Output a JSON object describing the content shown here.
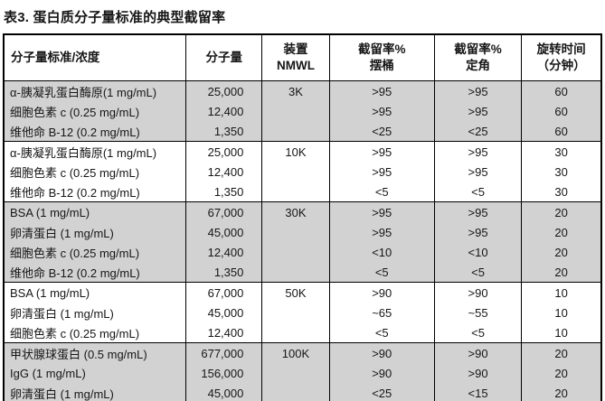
{
  "title": "表3. 蛋白质分子量标准的典型截留率",
  "colors": {
    "band": "#d2d2d2",
    "border": "#000000",
    "text": "#161616"
  },
  "table": {
    "headers": [
      {
        "line1": "分子量标准/浓度",
        "line2": ""
      },
      {
        "line1": "分子量",
        "line2": ""
      },
      {
        "line1": "装置",
        "line2": "NMWL"
      },
      {
        "line1": "截留率%",
        "line2": "摆桶"
      },
      {
        "line1": "截留率%",
        "line2": "定角"
      },
      {
        "line1": "旋转时间",
        "line2": "（分钟）"
      }
    ],
    "groups": [
      {
        "nmwl": "3K",
        "rows": [
          {
            "standard": "α-胰凝乳蛋白酶原(1 mg/mL)",
            "mw": "25,000",
            "swing": ">95",
            "fixed": ">95",
            "time": "60"
          },
          {
            "standard": "细胞色素 c (0.25 mg/mL)",
            "mw": "12,400",
            "swing": ">95",
            "fixed": ">95",
            "time": "60"
          },
          {
            "standard": "维他命 B-12 (0.2 mg/mL)",
            "mw": "1,350",
            "swing": "<25",
            "fixed": "<25",
            "time": "60"
          }
        ]
      },
      {
        "nmwl": "10K",
        "rows": [
          {
            "standard": "α-胰凝乳蛋白酶原(1 mg/mL)",
            "mw": "25,000",
            "swing": ">95",
            "fixed": ">95",
            "time": "30"
          },
          {
            "standard": "细胞色素 c (0.25 mg/mL)",
            "mw": "12,400",
            "swing": ">95",
            "fixed": ">95",
            "time": "30"
          },
          {
            "standard": "维他命 B-12 (0.2 mg/mL)",
            "mw": "1,350",
            "swing": "<5",
            "fixed": "<5",
            "time": "30"
          }
        ]
      },
      {
        "nmwl": "30K",
        "rows": [
          {
            "standard": "BSA (1 mg/mL)",
            "mw": "67,000",
            "swing": ">95",
            "fixed": ">95",
            "time": "20"
          },
          {
            "standard": "卵清蛋白 (1 mg/mL)",
            "mw": "45,000",
            "swing": ">95",
            "fixed": ">95",
            "time": "20"
          },
          {
            "standard": "细胞色素 c (0.25 mg/mL)",
            "mw": "12,400",
            "swing": "<10",
            "fixed": "<10",
            "time": "20"
          },
          {
            "standard": "维他命 B-12 (0.2 mg/mL)",
            "mw": "1,350",
            "swing": "<5",
            "fixed": "<5",
            "time": "20"
          }
        ]
      },
      {
        "nmwl": "50K",
        "rows": [
          {
            "standard": "BSA (1 mg/mL)",
            "mw": "67,000",
            "swing": ">90",
            "fixed": ">90",
            "time": "10"
          },
          {
            "standard": "卵清蛋白 (1 mg/mL)",
            "mw": "45,000",
            "swing": "~65",
            "fixed": "~55",
            "time": "10"
          },
          {
            "standard": "细胞色素 c (0.25 mg/mL)",
            "mw": "12,400",
            "swing": "<5",
            "fixed": "<5",
            "time": "10"
          }
        ]
      },
      {
        "nmwl": "100K",
        "rows": [
          {
            "standard": "甲状腺球蛋白 (0.5 mg/mL)",
            "mw": "677,000",
            "swing": ">90",
            "fixed": ">90",
            "time": "20"
          },
          {
            "standard": "IgG (1 mg/mL)",
            "mw": "156,000",
            "swing": ">90",
            "fixed": ">90",
            "time": "20"
          },
          {
            "standard": "卵清蛋白 (1 mg/mL)",
            "mw": "45,000",
            "swing": "<25",
            "fixed": "<15",
            "time": "20"
          }
        ]
      }
    ]
  }
}
